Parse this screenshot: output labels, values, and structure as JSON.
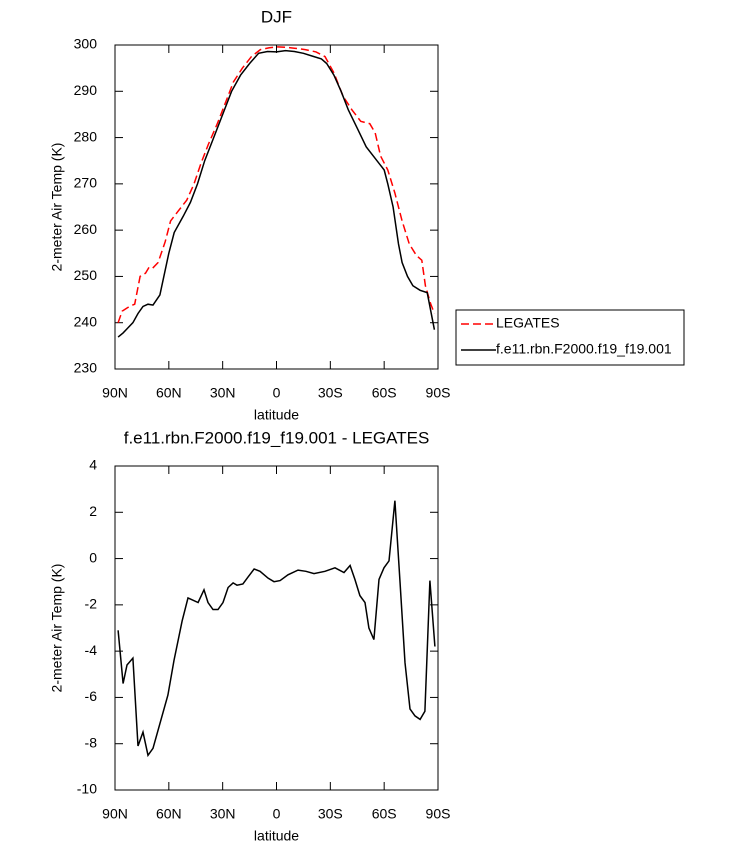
{
  "chart_data": [
    {
      "type": "line",
      "title": "DJF",
      "xlabel": "latitude",
      "ylabel": "2-meter Air Temp (K)",
      "xlim": [
        90,
        -90
      ],
      "ylim": [
        230,
        300
      ],
      "xticks": [
        {
          "value": 90,
          "label": "90N"
        },
        {
          "value": 60,
          "label": "60N"
        },
        {
          "value": 30,
          "label": "30N"
        },
        0,
        {
          "value": -30,
          "label": "30S"
        },
        {
          "value": -60,
          "label": "60S"
        },
        {
          "value": -90,
          "label": "90S"
        }
      ],
      "yticks": [
        230,
        240,
        250,
        260,
        270,
        280,
        290,
        300
      ],
      "legend": "right",
      "series": [
        {
          "name": "LEGATES",
          "color": "#ff0000",
          "dash": "dashed",
          "x": [
            88.3,
            86,
            82,
            79,
            76,
            73,
            71,
            69,
            66,
            62,
            59,
            55,
            50,
            46,
            42,
            38,
            33,
            28,
            24,
            19,
            14,
            9,
            4,
            0,
            -5,
            -10,
            -16,
            -22,
            -27,
            -32,
            -37,
            -42,
            -47,
            -52,
            -55,
            -58,
            -62,
            -66,
            -70,
            -74,
            -78,
            -81,
            -83,
            -86,
            -88
          ],
          "values": [
            240,
            242.5,
            243.5,
            244,
            250,
            250.7,
            252,
            251.8,
            253,
            257.5,
            262,
            264,
            266.5,
            270,
            274.5,
            278.5,
            283,
            288,
            292,
            295,
            297.5,
            299,
            299.4,
            299.6,
            299.5,
            299.3,
            299,
            298.5,
            297.5,
            294,
            289,
            286,
            283.5,
            283,
            281,
            276,
            273,
            268,
            262,
            257,
            254.5,
            253.5,
            248,
            244,
            242
          ]
        },
        {
          "name": "f.e11.rbn.F2000.f19_f19.001",
          "color": "#000000",
          "dash": "solid",
          "x": [
            88.3,
            85.5,
            80,
            77.2,
            74.4,
            71.6,
            68.8,
            65,
            60,
            57,
            52,
            48,
            44,
            40,
            35,
            30,
            25,
            20,
            15,
            10,
            5,
            0,
            -5,
            -10,
            -15,
            -20,
            -25,
            -28,
            -32,
            -36,
            -40,
            -45,
            -50,
            -55,
            -60,
            -62,
            -65,
            -68,
            -70,
            -73,
            -76,
            -80,
            -84,
            -88
          ],
          "values": [
            236.9,
            237.8,
            240,
            242,
            243.5,
            244,
            243.8,
            246,
            255,
            259.5,
            263,
            266,
            270,
            275,
            280,
            285,
            290,
            293.5,
            296,
            298.2,
            298.6,
            298.5,
            298.8,
            298.6,
            298.2,
            297.6,
            297,
            296,
            293.5,
            290,
            286,
            282,
            278,
            275.5,
            273,
            270,
            265,
            257,
            253,
            250,
            248,
            247,
            246.5,
            238.5
          ]
        }
      ]
    },
    {
      "type": "line",
      "title": "f.e11.rbn.F2000.f19_f19.001 - LEGATES",
      "xlabel": "latitude",
      "ylabel": "2-meter Air Temp (K)",
      "xlim": [
        90,
        -90
      ],
      "ylim": [
        -10,
        4
      ],
      "xticks": [
        {
          "value": 90,
          "label": "90N"
        },
        {
          "value": 60,
          "label": "60N"
        },
        {
          "value": 30,
          "label": "30N"
        },
        0,
        {
          "value": -30,
          "label": "30S"
        },
        {
          "value": -60,
          "label": "60S"
        },
        {
          "value": -90,
          "label": "90S"
        }
      ],
      "yticks": [
        -10,
        -8,
        -6,
        -4,
        -2,
        0,
        2,
        4
      ],
      "series": [
        {
          "color": "#000000",
          "dash": "solid",
          "x": [
            88.3,
            85.5,
            83.3,
            80,
            77.2,
            74.4,
            71.6,
            68.8,
            60.5,
            57.1,
            52.6,
            49.3,
            43.7,
            40.4,
            38.2,
            35.4,
            32.6,
            29.8,
            27,
            24.2,
            22,
            18.7,
            15.9,
            12.5,
            9.2,
            4.7,
            1.4,
            -2,
            -6.4,
            -12,
            -16.4,
            -20.9,
            -27,
            -32.6,
            -37.6,
            -41,
            -43.7,
            -46.5,
            -49.3,
            -51.5,
            -54.3,
            -57.1,
            -59.9,
            -62.7,
            -66,
            -68.8,
            -71.6,
            -74.4,
            -77.2,
            -80,
            -82.7,
            -85.5,
            -88.3
          ],
          "values": [
            -3.1,
            -5.4,
            -4.6,
            -4.3,
            -8.1,
            -7.5,
            -8.5,
            -8.2,
            -5.9,
            -4.4,
            -2.7,
            -1.7,
            -1.9,
            -1.35,
            -1.9,
            -2.2,
            -2.2,
            -1.9,
            -1.25,
            -1.05,
            -1.15,
            -1.1,
            -0.8,
            -0.45,
            -0.55,
            -0.85,
            -1.0,
            -0.95,
            -0.7,
            -0.5,
            -0.55,
            -0.65,
            -0.55,
            -0.4,
            -0.6,
            -0.3,
            -0.9,
            -1.6,
            -1.9,
            -3.0,
            -3.5,
            -0.9,
            -0.4,
            -0.1,
            2.5,
            -1.0,
            -4.5,
            -6.5,
            -6.8,
            -6.95,
            -6.6,
            -0.95,
            -3.8
          ]
        }
      ]
    }
  ]
}
